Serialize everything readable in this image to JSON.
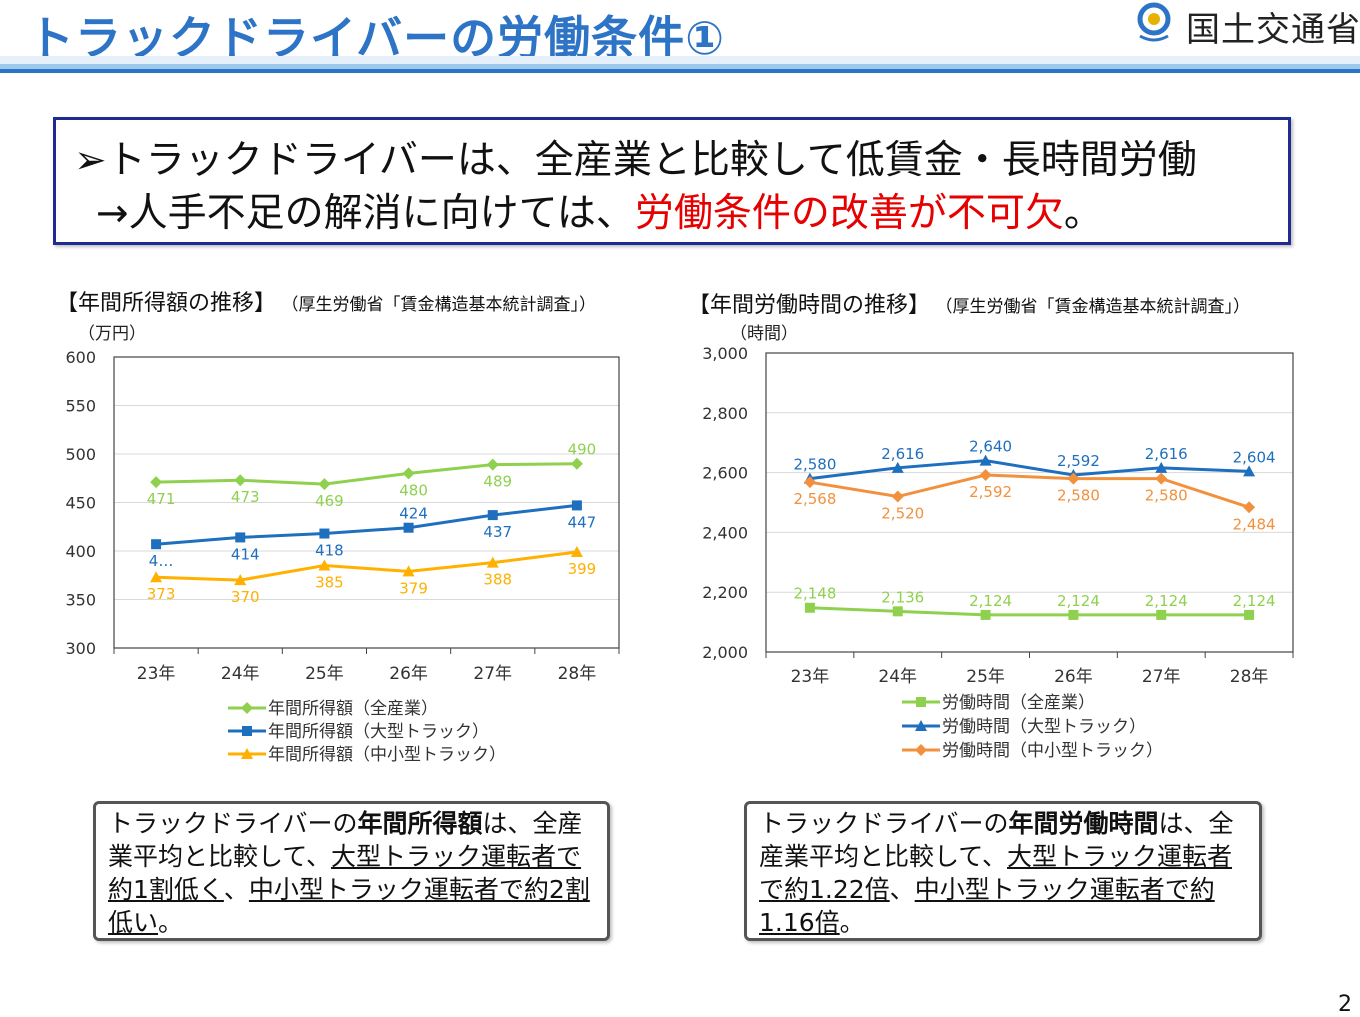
{
  "header": {
    "title": "トラックドライバーの労働条件①",
    "ministry": "国土交通省",
    "logo_icon": "mlit-logo-icon"
  },
  "message": {
    "bullet": "➢",
    "line1": "トラックドライバーは、全産業と比較して低賃金・長時間労働",
    "line2_prefix": "→人手不足の解消に向けては、",
    "line2_emphasis": "労働条件の改善が不可欠",
    "line2_suffix": "。",
    "emphasis_color": "#e60000"
  },
  "income_chart": {
    "heading": "【年間所得額の推移】",
    "source": "（厚生労働省「賃金構造基本統計調査」）",
    "unit": "（万円）"
  },
  "hours_chart": {
    "heading": "【年間労働時間の推移】",
    "source": "（厚生労働省「賃金構造基本統計調査」）",
    "unit": "（時間）"
  },
  "chart_data": [
    {
      "id": "income",
      "type": "line",
      "title": "年間所得額の推移",
      "ylabel": "（万円）",
      "ylim": [
        300,
        600
      ],
      "yticks": [
        300,
        350,
        400,
        450,
        500,
        550,
        600
      ],
      "ytick_labels": [
        "300",
        "350",
        "400",
        "450",
        "500",
        "550",
        "600"
      ],
      "grid": true,
      "categories": [
        "23年",
        "24年",
        "25年",
        "26年",
        "27年",
        "28年"
      ],
      "series": [
        {
          "name": "年間所得額（全産業）",
          "color": "#8fd14f",
          "marker": "diamond",
          "values": [
            471,
            473,
            469,
            480,
            489,
            490
          ],
          "labels": [
            "471",
            "473",
            "469",
            "480",
            "489",
            "490"
          ],
          "label_pos": [
            "below",
            "below",
            "below",
            "below",
            "below",
            "above"
          ]
        },
        {
          "name": "年間所得額（大型トラック）",
          "color": "#1f6fbf",
          "marker": "square",
          "values": [
            407,
            414,
            418,
            424,
            437,
            447
          ],
          "labels": [
            "4…",
            "414",
            "418",
            "424",
            "437",
            "447"
          ],
          "label_pos": [
            "below",
            "below",
            "below",
            "above",
            "below",
            "below"
          ]
        },
        {
          "name": "年間所得額（中小型トラック）",
          "color": "#ffb000",
          "marker": "triangle",
          "values": [
            373,
            370,
            385,
            379,
            388,
            399
          ],
          "labels": [
            "373",
            "370",
            "385",
            "379",
            "388",
            "399"
          ],
          "label_pos": [
            "below",
            "below",
            "below",
            "below",
            "below",
            "below"
          ]
        }
      ]
    },
    {
      "id": "hours",
      "type": "line",
      "title": "年間労働時間の推移",
      "ylabel": "（時間）",
      "ylim": [
        2000,
        3000
      ],
      "yticks": [
        2000,
        2200,
        2400,
        2600,
        2800,
        3000
      ],
      "ytick_labels": [
        "2,000",
        "2,200",
        "2,400",
        "2,600",
        "2,800",
        "3,000"
      ],
      "grid": true,
      "categories": [
        "23年",
        "24年",
        "25年",
        "26年",
        "27年",
        "28年"
      ],
      "series": [
        {
          "name": "労働時間（全産業）",
          "color": "#8fd14f",
          "marker": "square",
          "values": [
            2148,
            2136,
            2124,
            2124,
            2124,
            2124
          ],
          "labels": [
            "2,148",
            "2,136",
            "2,124",
            "2,124",
            "2,124",
            "2,124"
          ],
          "label_pos": [
            "above",
            "above",
            "above",
            "above",
            "above",
            "above"
          ]
        },
        {
          "name": "労働時間（大型トラック）",
          "color": "#1f6fbf",
          "marker": "triangle",
          "values": [
            2580,
            2616,
            2640,
            2592,
            2616,
            2604
          ],
          "labels": [
            "2,580",
            "2,616",
            "2,640",
            "2,592",
            "2,616",
            "2,604"
          ],
          "label_pos": [
            "above",
            "above",
            "above",
            "above",
            "above",
            "above"
          ]
        },
        {
          "name": "労働時間（中小型トラック）",
          "color": "#f2913d",
          "marker": "diamond",
          "values": [
            2568,
            2520,
            2592,
            2580,
            2580,
            2484
          ],
          "labels": [
            "2,568",
            "2,520",
            "2,592",
            "2,580",
            "2,580",
            "2,484"
          ],
          "label_pos": [
            "below",
            "below",
            "below",
            "below",
            "below",
            "below"
          ]
        }
      ]
    }
  ],
  "notes": {
    "income": {
      "part1": "トラックドライバーの",
      "bold": "年間所得額",
      "part2": "は、全産業平均と比較して、",
      "u1": "大型トラック運転者で約1割低く",
      "part3": "、",
      "u2": "中小型トラック運転者で約2割低い",
      "end": "。"
    },
    "hours": {
      "part1": "トラックドライバーの",
      "bold": "年間労働時間",
      "part2": "は、全産業平均と比較して、",
      "u1": "大型トラック運転者で約1.22倍",
      "part3": "、",
      "u2": "中小型トラック運転者で約1.16倍",
      "end": "。"
    }
  },
  "page_number": "2"
}
